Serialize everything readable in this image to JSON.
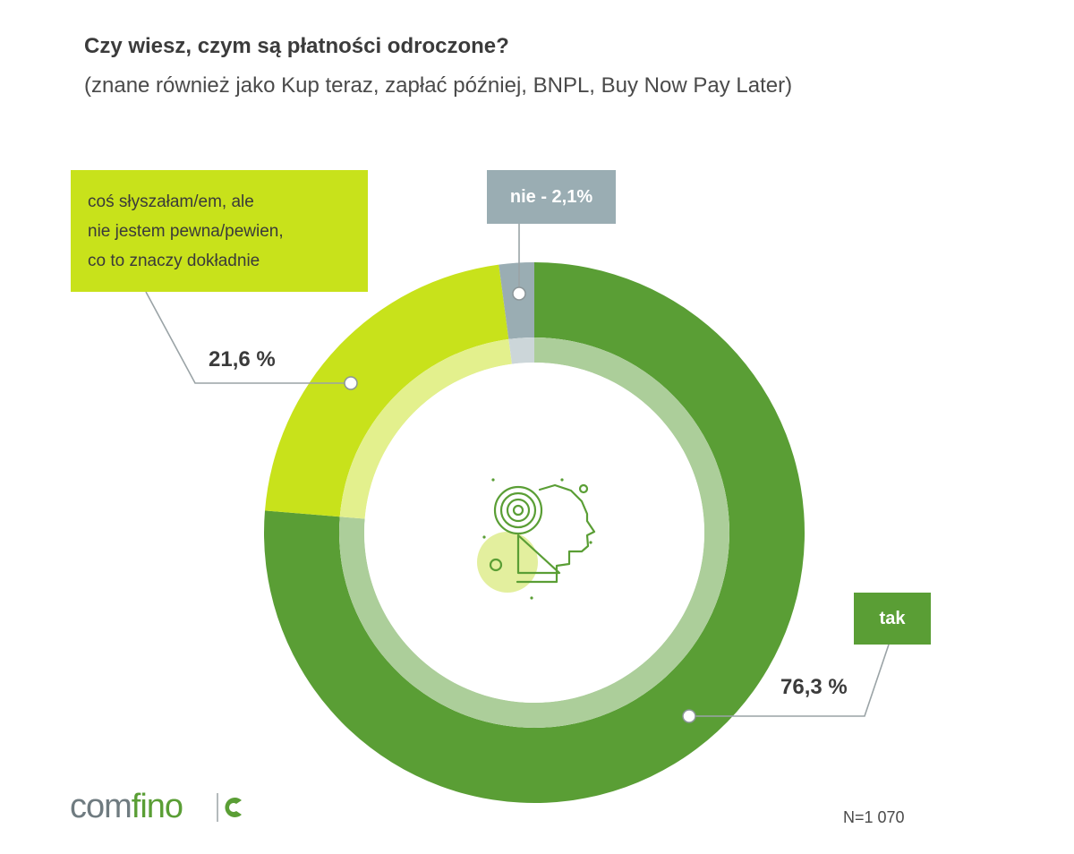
{
  "header": {
    "title": "Czy wiesz, czym są płatności odroczone?",
    "subtitle": "(znane również jako Kup teraz, zapłać później, BNPL, Buy Now Pay Later)"
  },
  "chart_data": {
    "type": "pie",
    "title": "Czy wiesz, czym są płatności odroczone?",
    "subtitle": "(znane również jako Kup teraz, zapłać później, BNPL, Buy Now Pay Later)",
    "donut": true,
    "categories": [
      "tak",
      "coś słyszałam/em, ale nie jestem pewna/pewien, co to znaczy dokładnie",
      "nie"
    ],
    "values": [
      76.3,
      21.6,
      2.1
    ],
    "colors": [
      "#5a9e35",
      "#c8e21b",
      "#9aadb3"
    ],
    "labels": {
      "yes_name": "tak",
      "yes_value": "76,3 %",
      "unsure_lines": [
        "coś słyszałam/em, ale",
        "nie jestem pewna/pewien,",
        "co to znaczy dokładnie"
      ],
      "unsure_value": "21,6 %",
      "no_text": "nie - 2,1%"
    },
    "center_icon": "head-target-icon"
  },
  "footer": {
    "logo_part1": "com",
    "logo_part2": "fino",
    "sample": "N=1 070"
  }
}
